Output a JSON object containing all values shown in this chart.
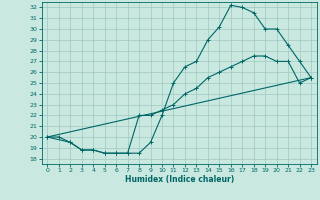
{
  "xlabel": "Humidex (Indice chaleur)",
  "bg_color": "#c8e8e0",
  "line_color": "#006666",
  "grid_color": "#a0c8c0",
  "xlim": [
    -0.5,
    23.5
  ],
  "ylim": [
    17.5,
    32.5
  ],
  "xticks": [
    0,
    1,
    2,
    3,
    4,
    5,
    6,
    7,
    8,
    9,
    10,
    11,
    12,
    13,
    14,
    15,
    16,
    17,
    18,
    19,
    20,
    21,
    22,
    23
  ],
  "yticks": [
    18,
    19,
    20,
    21,
    22,
    23,
    24,
    25,
    26,
    27,
    28,
    29,
    30,
    31,
    32
  ],
  "curve1_x": [
    0,
    1,
    2,
    3,
    4,
    5,
    6,
    7,
    8,
    9,
    10,
    11,
    12,
    13,
    14,
    15,
    16,
    17,
    18,
    19,
    20,
    21,
    22,
    23
  ],
  "curve1_y": [
    20.0,
    20.0,
    19.5,
    18.8,
    18.8,
    18.5,
    18.5,
    18.5,
    18.5,
    19.5,
    22.0,
    25.0,
    26.5,
    27.0,
    29.0,
    30.2,
    32.2,
    32.0,
    31.5,
    30.0,
    30.0,
    28.5,
    27.0,
    25.5
  ],
  "curve2_x": [
    0,
    2,
    3,
    4,
    5,
    6,
    7,
    8,
    9,
    10,
    11,
    12,
    13,
    14,
    15,
    16,
    17,
    18,
    19,
    20,
    21,
    22,
    23
  ],
  "curve2_y": [
    20.0,
    19.5,
    18.8,
    18.8,
    18.5,
    18.5,
    18.5,
    22.0,
    22.0,
    22.5,
    23.0,
    24.0,
    24.5,
    25.5,
    26.0,
    26.5,
    27.0,
    27.5,
    27.5,
    27.0,
    27.0,
    25.0,
    25.5
  ],
  "curve3_x": [
    0,
    23
  ],
  "curve3_y": [
    20.0,
    25.5
  ]
}
